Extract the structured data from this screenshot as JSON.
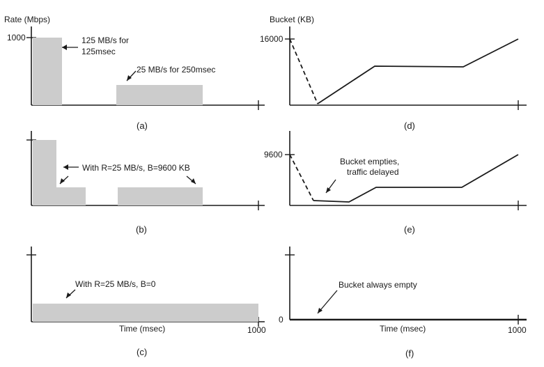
{
  "panels": {
    "a": {
      "label": "(a)",
      "y_axis_title": "Rate (Mbps)",
      "y_tick": "1000",
      "annotation_1_line1": "125 MB/s for",
      "annotation_1_line2": "125msec",
      "annotation_2": "25 MB/s for 250msec"
    },
    "b": {
      "label": "(b)",
      "annotation": "With R=25 MB/s, B=9600 KB"
    },
    "c": {
      "label": "(c)",
      "annotation": "With R=25 MB/s, B=0",
      "x_axis_title": "Time (msec)",
      "x_tick": "1000"
    },
    "d": {
      "label": "(d)",
      "y_axis_title": "Bucket (KB)",
      "y_tick": "16000"
    },
    "e": {
      "label": "(e)",
      "y_tick": "9600",
      "annotation_line1": "Bucket empties,",
      "annotation_line2": "traffic delayed"
    },
    "f": {
      "label": "(f)",
      "y_tick": "0",
      "annotation": "Bucket always empty",
      "x_axis_title": "Time (msec)",
      "x_tick": "1000"
    }
  }
}
